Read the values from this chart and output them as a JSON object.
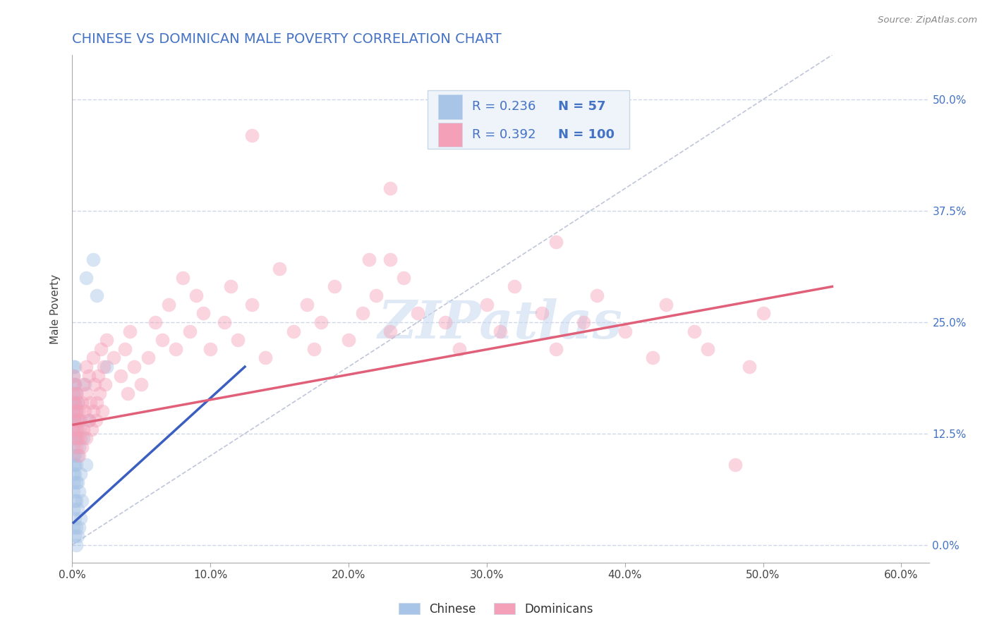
{
  "title": "CHINESE VS DOMINICAN MALE POVERTY CORRELATION CHART",
  "source": "Source: ZipAtlas.com",
  "xlabel_ticks": [
    "0.0%",
    "10.0%",
    "20.0%",
    "30.0%",
    "40.0%",
    "50.0%",
    "60.0%"
  ],
  "ylabel_ticks_right": [
    "50.0%",
    "37.5%",
    "25.0%",
    "12.5%",
    "0.0%"
  ],
  "ylabel_label": "Male Poverty",
  "xlim": [
    0.0,
    0.62
  ],
  "ylim": [
    -0.02,
    0.55
  ],
  "legend_R_chinese": "0.236",
  "legend_N_chinese": "57",
  "legend_R_dominican": "0.392",
  "legend_N_dominican": "100",
  "chinese_color": "#a8c4e6",
  "dominican_color": "#f4a0b8",
  "chinese_line_color": "#3b5fc0",
  "dominican_line_color": "#e0607a",
  "diagonal_color": "#b0b8d0",
  "watermark": "ZIPatlas",
  "title_color": "#4472c4",
  "label_color": "#4472c4",
  "source_color": "#888888",
  "grid_color": "#d0d8e8",
  "legend_bg": "#eef4fa",
  "legend_border": "#c8d8e8",
  "chinese_points": [
    [
      0.001,
      0.02
    ],
    [
      0.001,
      0.04
    ],
    [
      0.001,
      0.06
    ],
    [
      0.001,
      0.07
    ],
    [
      0.001,
      0.08
    ],
    [
      0.001,
      0.09
    ],
    [
      0.001,
      0.1
    ],
    [
      0.001,
      0.11
    ],
    [
      0.001,
      0.12
    ],
    [
      0.001,
      0.13
    ],
    [
      0.001,
      0.14
    ],
    [
      0.001,
      0.15
    ],
    [
      0.001,
      0.16
    ],
    [
      0.001,
      0.17
    ],
    [
      0.001,
      0.18
    ],
    [
      0.001,
      0.19
    ],
    [
      0.001,
      0.2
    ],
    [
      0.002,
      0.01
    ],
    [
      0.002,
      0.03
    ],
    [
      0.002,
      0.05
    ],
    [
      0.002,
      0.08
    ],
    [
      0.002,
      0.09
    ],
    [
      0.002,
      0.1
    ],
    [
      0.002,
      0.12
    ],
    [
      0.002,
      0.14
    ],
    [
      0.002,
      0.16
    ],
    [
      0.002,
      0.18
    ],
    [
      0.002,
      0.2
    ],
    [
      0.003,
      0.0
    ],
    [
      0.003,
      0.02
    ],
    [
      0.003,
      0.05
    ],
    [
      0.003,
      0.07
    ],
    [
      0.003,
      0.09
    ],
    [
      0.003,
      0.12
    ],
    [
      0.003,
      0.15
    ],
    [
      0.003,
      0.17
    ],
    [
      0.004,
      0.01
    ],
    [
      0.004,
      0.04
    ],
    [
      0.004,
      0.07
    ],
    [
      0.004,
      0.1
    ],
    [
      0.004,
      0.13
    ],
    [
      0.004,
      0.16
    ],
    [
      0.005,
      0.02
    ],
    [
      0.005,
      0.06
    ],
    [
      0.005,
      0.11
    ],
    [
      0.005,
      0.14
    ],
    [
      0.006,
      0.03
    ],
    [
      0.006,
      0.08
    ],
    [
      0.007,
      0.05
    ],
    [
      0.008,
      0.12
    ],
    [
      0.009,
      0.18
    ],
    [
      0.01,
      0.09
    ],
    [
      0.01,
      0.3
    ],
    [
      0.012,
      0.14
    ],
    [
      0.015,
      0.32
    ],
    [
      0.018,
      0.28
    ],
    [
      0.025,
      0.2
    ]
  ],
  "dominican_points": [
    [
      0.001,
      0.13
    ],
    [
      0.001,
      0.15
    ],
    [
      0.001,
      0.17
    ],
    [
      0.001,
      0.19
    ],
    [
      0.002,
      0.12
    ],
    [
      0.002,
      0.14
    ],
    [
      0.002,
      0.16
    ],
    [
      0.002,
      0.18
    ],
    [
      0.003,
      0.11
    ],
    [
      0.003,
      0.13
    ],
    [
      0.003,
      0.15
    ],
    [
      0.003,
      0.17
    ],
    [
      0.004,
      0.12
    ],
    [
      0.004,
      0.14
    ],
    [
      0.004,
      0.16
    ],
    [
      0.005,
      0.1
    ],
    [
      0.005,
      0.13
    ],
    [
      0.005,
      0.15
    ],
    [
      0.006,
      0.12
    ],
    [
      0.006,
      0.14
    ],
    [
      0.007,
      0.11
    ],
    [
      0.007,
      0.16
    ],
    [
      0.008,
      0.13
    ],
    [
      0.008,
      0.18
    ],
    [
      0.009,
      0.15
    ],
    [
      0.01,
      0.12
    ],
    [
      0.01,
      0.17
    ],
    [
      0.01,
      0.2
    ],
    [
      0.012,
      0.14
    ],
    [
      0.012,
      0.19
    ],
    [
      0.013,
      0.16
    ],
    [
      0.014,
      0.13
    ],
    [
      0.015,
      0.15
    ],
    [
      0.015,
      0.21
    ],
    [
      0.016,
      0.18
    ],
    [
      0.017,
      0.14
    ],
    [
      0.018,
      0.16
    ],
    [
      0.019,
      0.19
    ],
    [
      0.02,
      0.17
    ],
    [
      0.021,
      0.22
    ],
    [
      0.022,
      0.15
    ],
    [
      0.023,
      0.2
    ],
    [
      0.024,
      0.18
    ],
    [
      0.025,
      0.23
    ],
    [
      0.03,
      0.21
    ],
    [
      0.035,
      0.19
    ],
    [
      0.038,
      0.22
    ],
    [
      0.04,
      0.17
    ],
    [
      0.042,
      0.24
    ],
    [
      0.045,
      0.2
    ],
    [
      0.05,
      0.18
    ],
    [
      0.055,
      0.21
    ],
    [
      0.06,
      0.25
    ],
    [
      0.065,
      0.23
    ],
    [
      0.07,
      0.27
    ],
    [
      0.075,
      0.22
    ],
    [
      0.08,
      0.3
    ],
    [
      0.085,
      0.24
    ],
    [
      0.09,
      0.28
    ],
    [
      0.095,
      0.26
    ],
    [
      0.1,
      0.22
    ],
    [
      0.11,
      0.25
    ],
    [
      0.115,
      0.29
    ],
    [
      0.12,
      0.23
    ],
    [
      0.13,
      0.27
    ],
    [
      0.14,
      0.21
    ],
    [
      0.15,
      0.31
    ],
    [
      0.16,
      0.24
    ],
    [
      0.17,
      0.27
    ],
    [
      0.175,
      0.22
    ],
    [
      0.18,
      0.25
    ],
    [
      0.19,
      0.29
    ],
    [
      0.2,
      0.23
    ],
    [
      0.21,
      0.26
    ],
    [
      0.215,
      0.32
    ],
    [
      0.22,
      0.28
    ],
    [
      0.23,
      0.24
    ],
    [
      0.24,
      0.3
    ],
    [
      0.25,
      0.26
    ],
    [
      0.27,
      0.25
    ],
    [
      0.28,
      0.22
    ],
    [
      0.3,
      0.27
    ],
    [
      0.31,
      0.24
    ],
    [
      0.32,
      0.29
    ],
    [
      0.34,
      0.26
    ],
    [
      0.35,
      0.22
    ],
    [
      0.37,
      0.25
    ],
    [
      0.38,
      0.28
    ],
    [
      0.4,
      0.24
    ],
    [
      0.42,
      0.21
    ],
    [
      0.43,
      0.27
    ],
    [
      0.45,
      0.24
    ],
    [
      0.46,
      0.22
    ],
    [
      0.48,
      0.09
    ],
    [
      0.49,
      0.2
    ],
    [
      0.5,
      0.26
    ],
    [
      0.13,
      0.46
    ],
    [
      0.23,
      0.4
    ],
    [
      0.23,
      0.32
    ],
    [
      0.35,
      0.34
    ]
  ],
  "chinese_trend": [
    0.001,
    0.025,
    0.125,
    0.2
  ],
  "dominican_trend_x": [
    0.001,
    0.55
  ],
  "dominican_trend_y": [
    0.135,
    0.29
  ]
}
